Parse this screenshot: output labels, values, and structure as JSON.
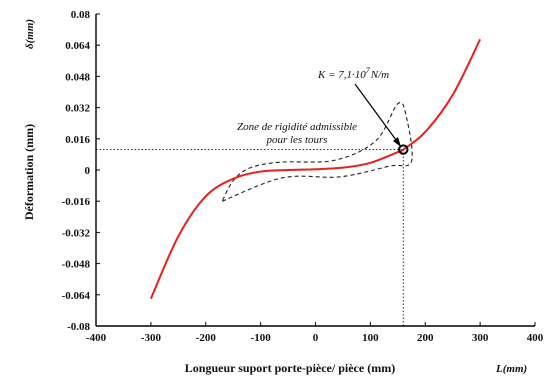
{
  "chart_data": {
    "type": "line",
    "xlabel": "Longueur suport porte-pièce/ pièce (mm)",
    "x_unit_label": "L(mm)",
    "ylabel": "Déformation (mm)",
    "y_unit_label": "δ(mm)",
    "xlim": [
      -400,
      400
    ],
    "ylim": [
      -0.08,
      0.08
    ],
    "x_ticks": [
      "-400",
      "-300",
      "-200",
      "-100",
      "0",
      "100",
      "200",
      "300",
      "400"
    ],
    "y_ticks": [
      "0.08",
      "0.064",
      "0.048",
      "0.032",
      "0.016",
      "0",
      "-0.016",
      "-0.032",
      "-0.048",
      "-0.064",
      "-0.08"
    ],
    "grid": false,
    "series": [
      {
        "color": "#e8201c",
        "x": [
          -300,
          -250,
          -200,
          -150,
          -100,
          -50,
          0,
          50,
          100,
          150,
          160,
          200,
          250,
          300
        ],
        "y": [
          -0.066,
          -0.034,
          -0.0135,
          -0.0045,
          -0.0008,
          0,
          0.0004,
          0.0012,
          0.0037,
          0.0092,
          0.0105,
          0.0195,
          0.0385,
          0.067
        ]
      }
    ],
    "highlight_point": {
      "x": 160,
      "y": 0.0105
    },
    "zone_outline": {
      "x": [
        -170,
        -60,
        45,
        135,
        175,
        165,
        150,
        110,
        35,
        -65,
        -120,
        -150,
        -170
      ],
      "y": [
        -0.016,
        -0.004,
        -0.0035,
        0.002,
        0.0045,
        0.028,
        0.034,
        0.015,
        0.005,
        0.004,
        0.001,
        -0.0055,
        -0.016
      ]
    },
    "annotations": {
      "stiffness_main": "K = 7,1·10",
      "stiffness_exp": "7",
      "stiffness_unit": "N/m",
      "zone_line1": "Zone de rigidité admissible",
      "zone_line2": "pour les tours"
    },
    "colors": {
      "curve": "#e8201c",
      "axes": "#000000"
    }
  }
}
